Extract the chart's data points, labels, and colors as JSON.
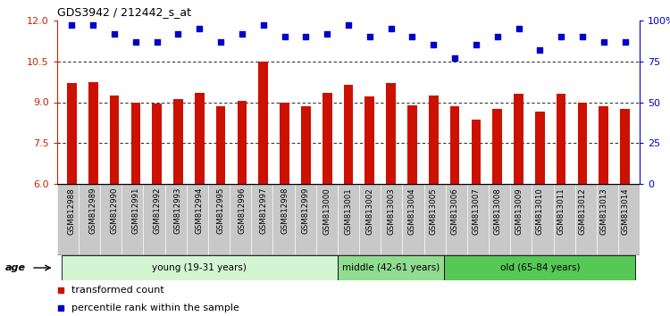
{
  "title": "GDS3942 / 212442_s_at",
  "samples": [
    "GSM812988",
    "GSM812989",
    "GSM812990",
    "GSM812991",
    "GSM812992",
    "GSM812993",
    "GSM812994",
    "GSM812995",
    "GSM812996",
    "GSM812997",
    "GSM812998",
    "GSM812999",
    "GSM813000",
    "GSM813001",
    "GSM813002",
    "GSM813003",
    "GSM813004",
    "GSM813005",
    "GSM813006",
    "GSM813007",
    "GSM813008",
    "GSM813009",
    "GSM813010",
    "GSM813011",
    "GSM813012",
    "GSM813013",
    "GSM813014"
  ],
  "red_values": [
    9.7,
    9.75,
    9.25,
    9.0,
    8.95,
    9.1,
    9.35,
    8.85,
    9.05,
    10.5,
    9.0,
    8.85,
    9.35,
    9.65,
    9.2,
    9.7,
    8.9,
    9.25,
    8.85,
    8.35,
    8.75,
    9.3,
    8.65,
    9.3,
    9.0,
    8.85,
    8.75
  ],
  "blue_values": [
    97,
    97,
    92,
    87,
    87,
    92,
    95,
    87,
    92,
    97,
    90,
    90,
    92,
    97,
    90,
    95,
    90,
    85,
    77,
    85,
    90,
    95,
    82,
    90,
    90,
    87,
    87
  ],
  "ylim_left": [
    6,
    12
  ],
  "ylim_right": [
    0,
    100
  ],
  "yticks_left": [
    6,
    7.5,
    9,
    10.5,
    12
  ],
  "yticks_right": [
    0,
    25,
    50,
    75,
    100
  ],
  "ytick_labels_right": [
    "0",
    "25",
    "50",
    "75",
    "100%"
  ],
  "groups": [
    {
      "label": "young (19-31 years)",
      "start": 0,
      "end": 13,
      "color": "#d4f5d4"
    },
    {
      "label": "middle (42-61 years)",
      "start": 13,
      "end": 18,
      "color": "#90dc90"
    },
    {
      "label": "old (65-84 years)",
      "start": 18,
      "end": 27,
      "color": "#55c855"
    }
  ],
  "bar_color": "#cc1100",
  "dot_color": "#0000cc",
  "xlabels_bg": "#c8c8c8",
  "legend_red": "transformed count",
  "legend_blue": "percentile rank within the sample",
  "age_label": "age",
  "left_tick_color": "#cc2200",
  "right_tick_color": "#0000cc",
  "dotted_lines": [
    7.5,
    9.0,
    10.5
  ]
}
